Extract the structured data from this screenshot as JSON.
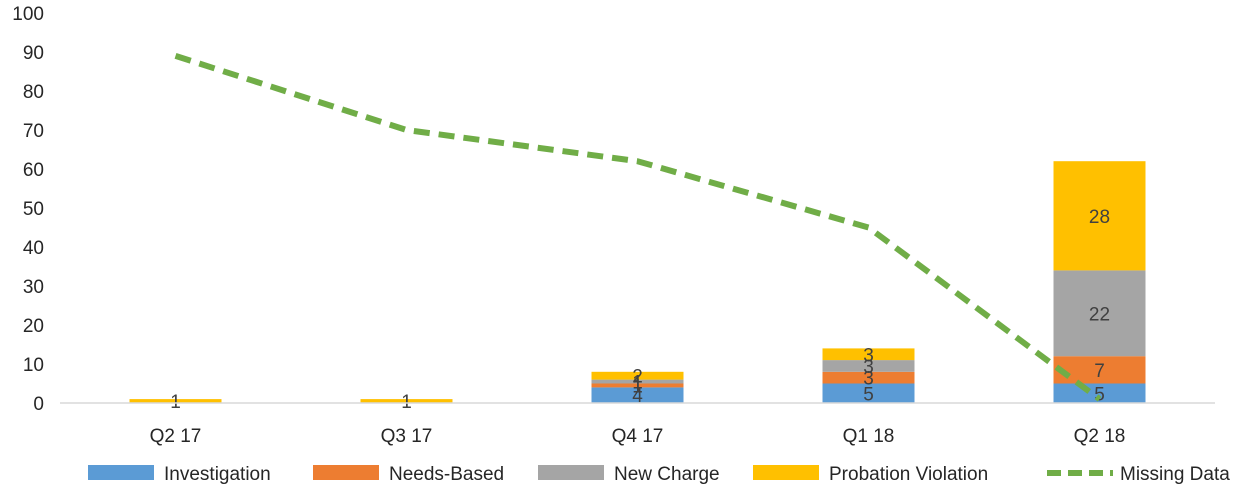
{
  "chart_data": {
    "type": "bar",
    "stacked": true,
    "categories": [
      "Q2 17",
      "Q3 17",
      "Q4 17",
      "Q1 18",
      "Q2 18"
    ],
    "ylim": [
      0,
      100
    ],
    "yticks": [
      0,
      10,
      20,
      30,
      40,
      50,
      60,
      70,
      80,
      90,
      100
    ],
    "grid": false,
    "legend_position": "bottom",
    "series": [
      {
        "name": "Investigation",
        "color": "#5B9BD5",
        "values": [
          0,
          0,
          4,
          5,
          5
        ],
        "labels": [
          "",
          "",
          "4",
          "5",
          "5"
        ]
      },
      {
        "name": "Needs-Based",
        "color": "#ED7D31",
        "values": [
          0,
          0,
          1,
          3,
          7
        ],
        "labels": [
          "",
          "",
          "1",
          "3",
          "7"
        ]
      },
      {
        "name": "New Charge",
        "color": "#A5A5A5",
        "values": [
          0,
          0,
          1,
          3,
          22
        ],
        "labels": [
          "",
          "",
          "1",
          "3",
          "22"
        ]
      },
      {
        "name": "Probation Violation",
        "color": "#FFC000",
        "values": [
          1,
          1,
          2,
          3,
          28
        ],
        "labels": [
          "1",
          "1",
          "2",
          "3",
          "28"
        ]
      }
    ],
    "line_series": {
      "name": "Missing Data",
      "color": "#70AD47",
      "style": "dashed",
      "values": [
        89,
        70,
        62,
        45,
        1
      ]
    }
  }
}
